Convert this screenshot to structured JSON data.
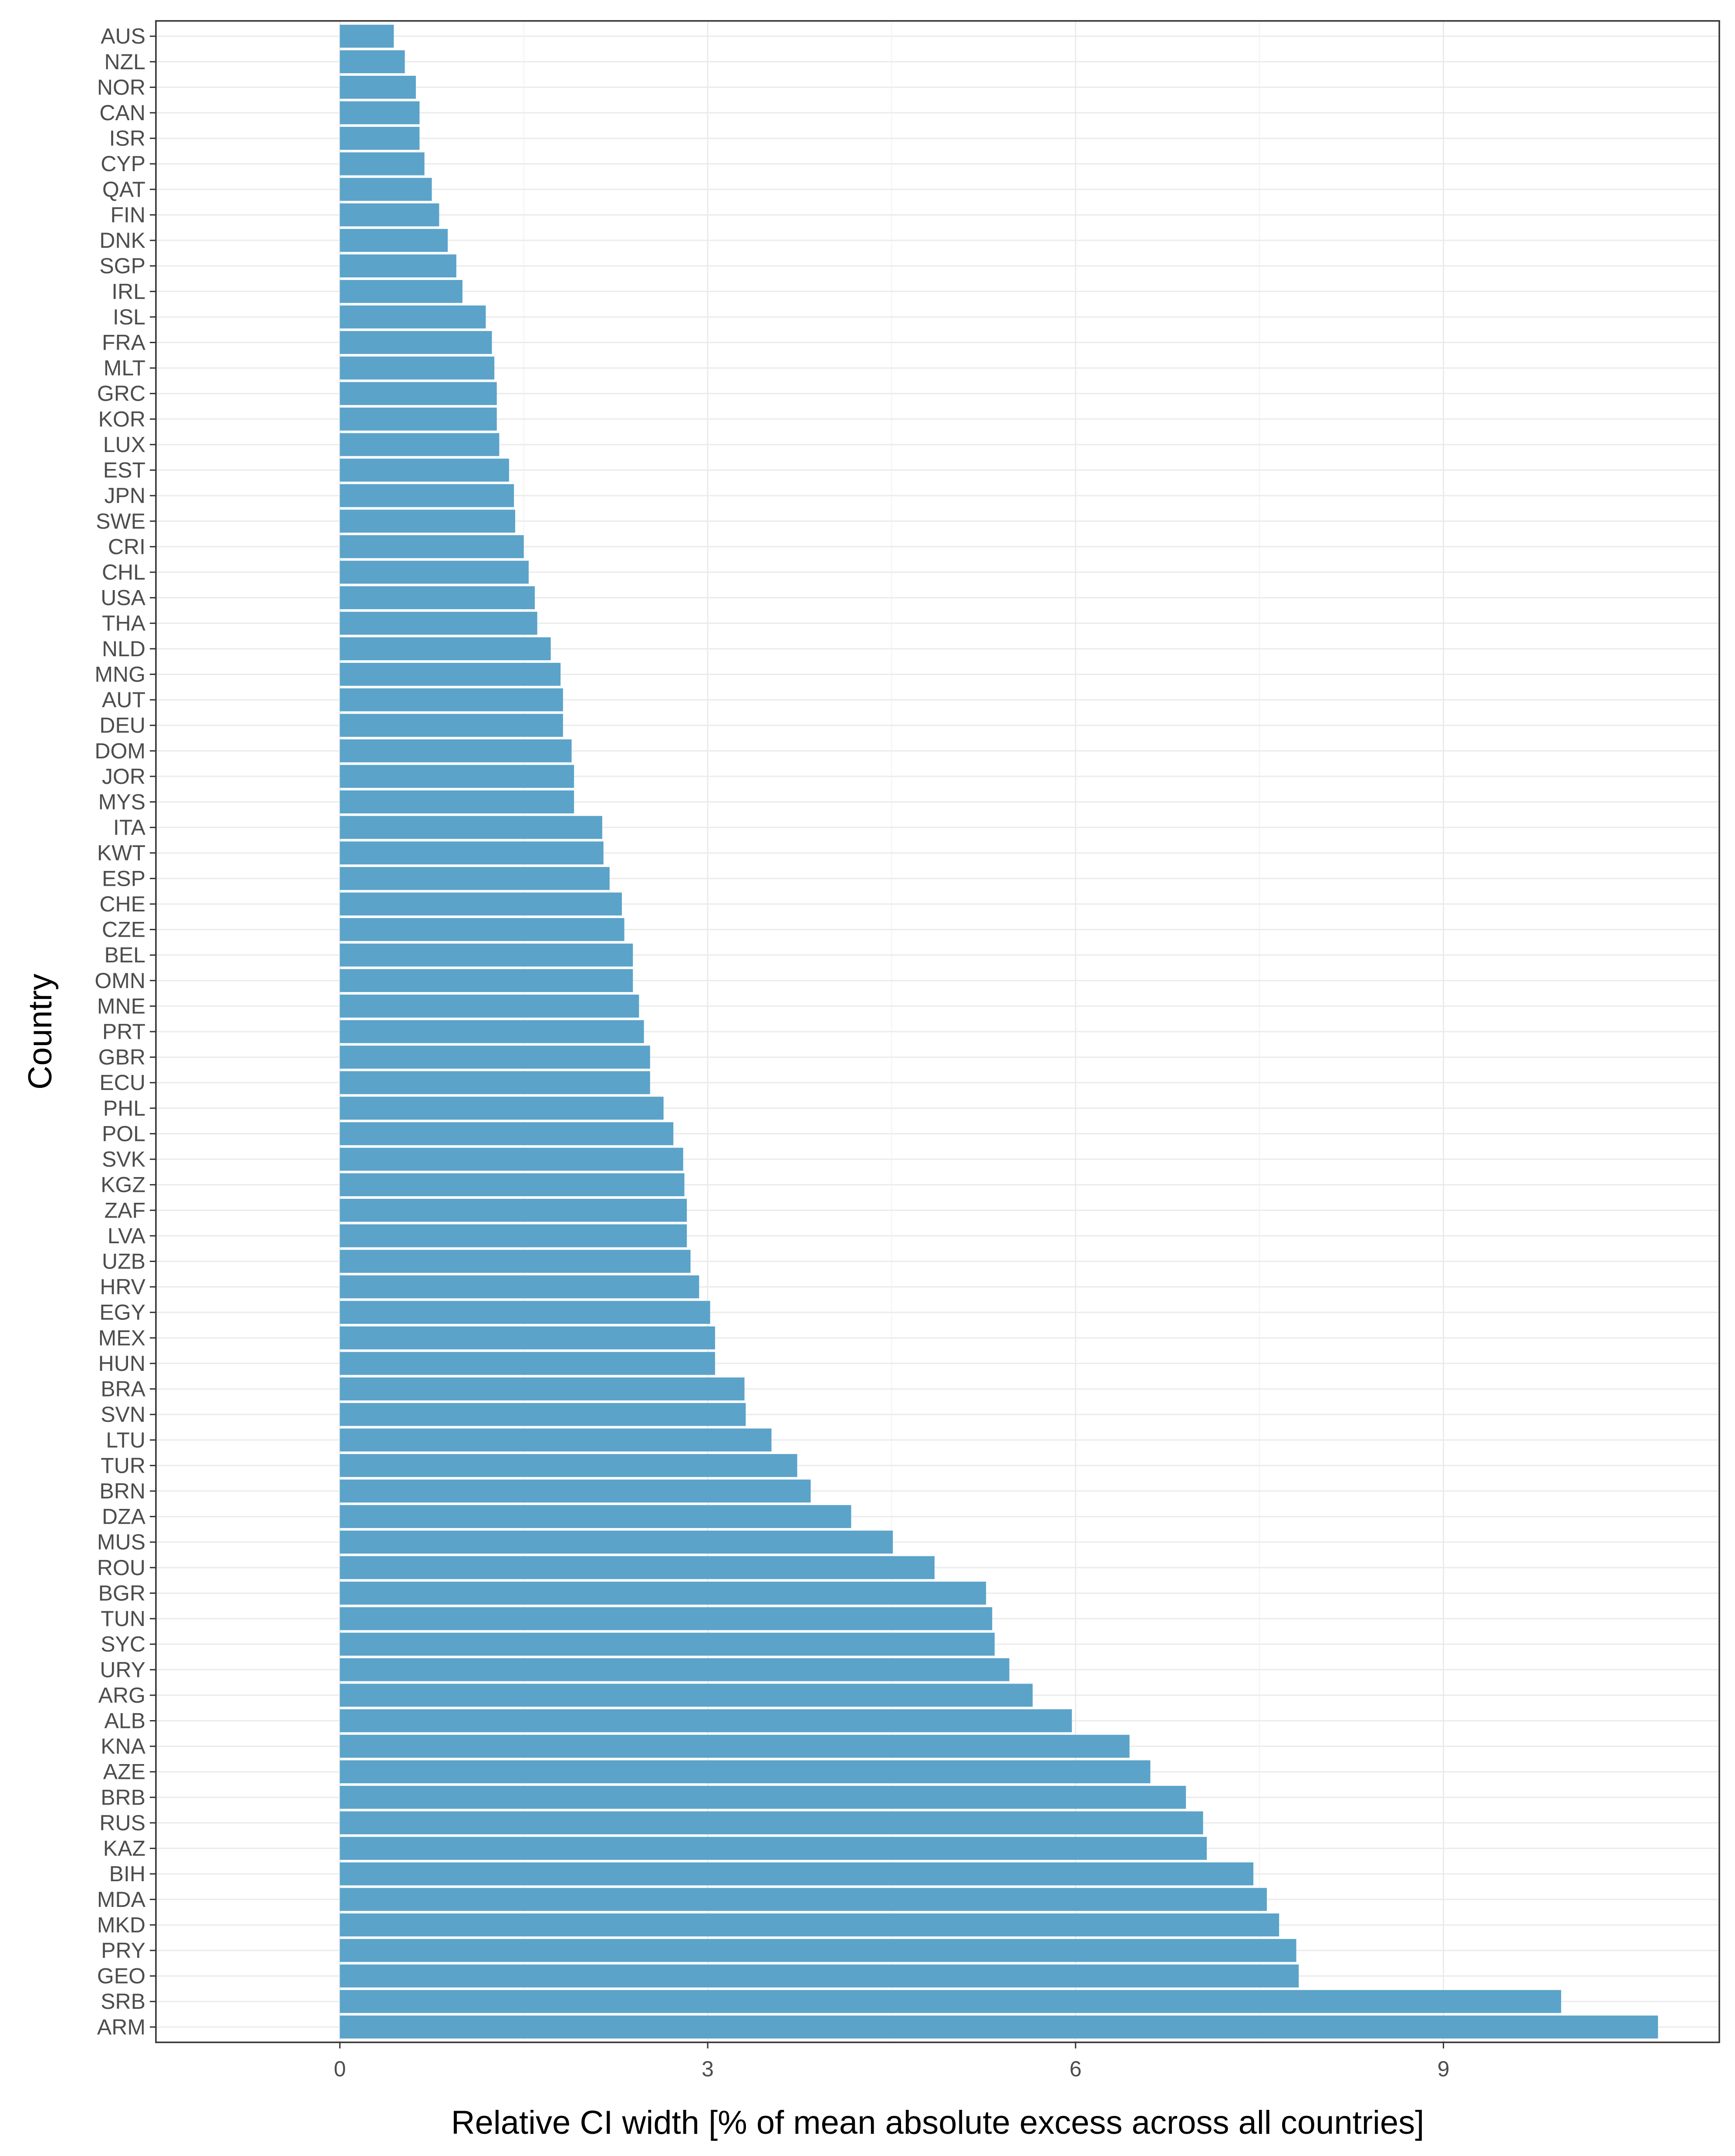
{
  "chart_data": {
    "type": "bar",
    "orientation": "horizontal",
    "title": "",
    "xlabel": "Relative CI width [% of mean absolute excess across all countries]",
    "ylabel": "Country",
    "xlim": [
      -1.5,
      11.25
    ],
    "xticks": [
      0,
      3,
      6,
      9
    ],
    "xtick_labels": [
      "0",
      "3",
      "6",
      "9"
    ],
    "grid": true,
    "legend": "none",
    "bar_color": "#5ba3c9",
    "categories": [
      "AUS",
      "NZL",
      "NOR",
      "CAN",
      "ISR",
      "CYP",
      "QAT",
      "FIN",
      "DNK",
      "SGP",
      "IRL",
      "ISL",
      "FRA",
      "MLT",
      "GRC",
      "KOR",
      "LUX",
      "EST",
      "JPN",
      "SWE",
      "CRI",
      "CHL",
      "USA",
      "THA",
      "NLD",
      "MNG",
      "AUT",
      "DEU",
      "DOM",
      "JOR",
      "MYS",
      "ITA",
      "KWT",
      "ESP",
      "CHE",
      "CZE",
      "BEL",
      "OMN",
      "MNE",
      "PRT",
      "GBR",
      "ECU",
      "PHL",
      "POL",
      "SVK",
      "KGZ",
      "ZAF",
      "LVA",
      "UZB",
      "HRV",
      "EGY",
      "MEX",
      "HUN",
      "BRA",
      "SVN",
      "LTU",
      "TUR",
      "BRN",
      "DZA",
      "MUS",
      "ROU",
      "BGR",
      "TUN",
      "SYC",
      "URY",
      "ARG",
      "ALB",
      "KNA",
      "AZE",
      "BRB",
      "RUS",
      "KAZ",
      "BIH",
      "MDA",
      "MKD",
      "PRY",
      "GEO",
      "SRB",
      "ARM"
    ],
    "values": [
      0.44,
      0.53,
      0.62,
      0.65,
      0.65,
      0.69,
      0.75,
      0.81,
      0.88,
      0.95,
      1.0,
      1.19,
      1.24,
      1.26,
      1.28,
      1.28,
      1.3,
      1.38,
      1.42,
      1.43,
      1.5,
      1.54,
      1.59,
      1.61,
      1.72,
      1.8,
      1.82,
      1.82,
      1.89,
      1.91,
      1.91,
      2.14,
      2.15,
      2.2,
      2.3,
      2.32,
      2.39,
      2.39,
      2.44,
      2.48,
      2.53,
      2.53,
      2.64,
      2.72,
      2.8,
      2.81,
      2.83,
      2.83,
      2.86,
      2.93,
      3.02,
      3.06,
      3.06,
      3.3,
      3.31,
      3.52,
      3.73,
      3.84,
      4.17,
      4.51,
      4.85,
      5.27,
      5.32,
      5.34,
      5.46,
      5.65,
      5.97,
      6.44,
      6.61,
      6.9,
      7.04,
      7.07,
      7.45,
      7.56,
      7.66,
      7.8,
      7.82,
      9.96,
      10.75
    ]
  }
}
